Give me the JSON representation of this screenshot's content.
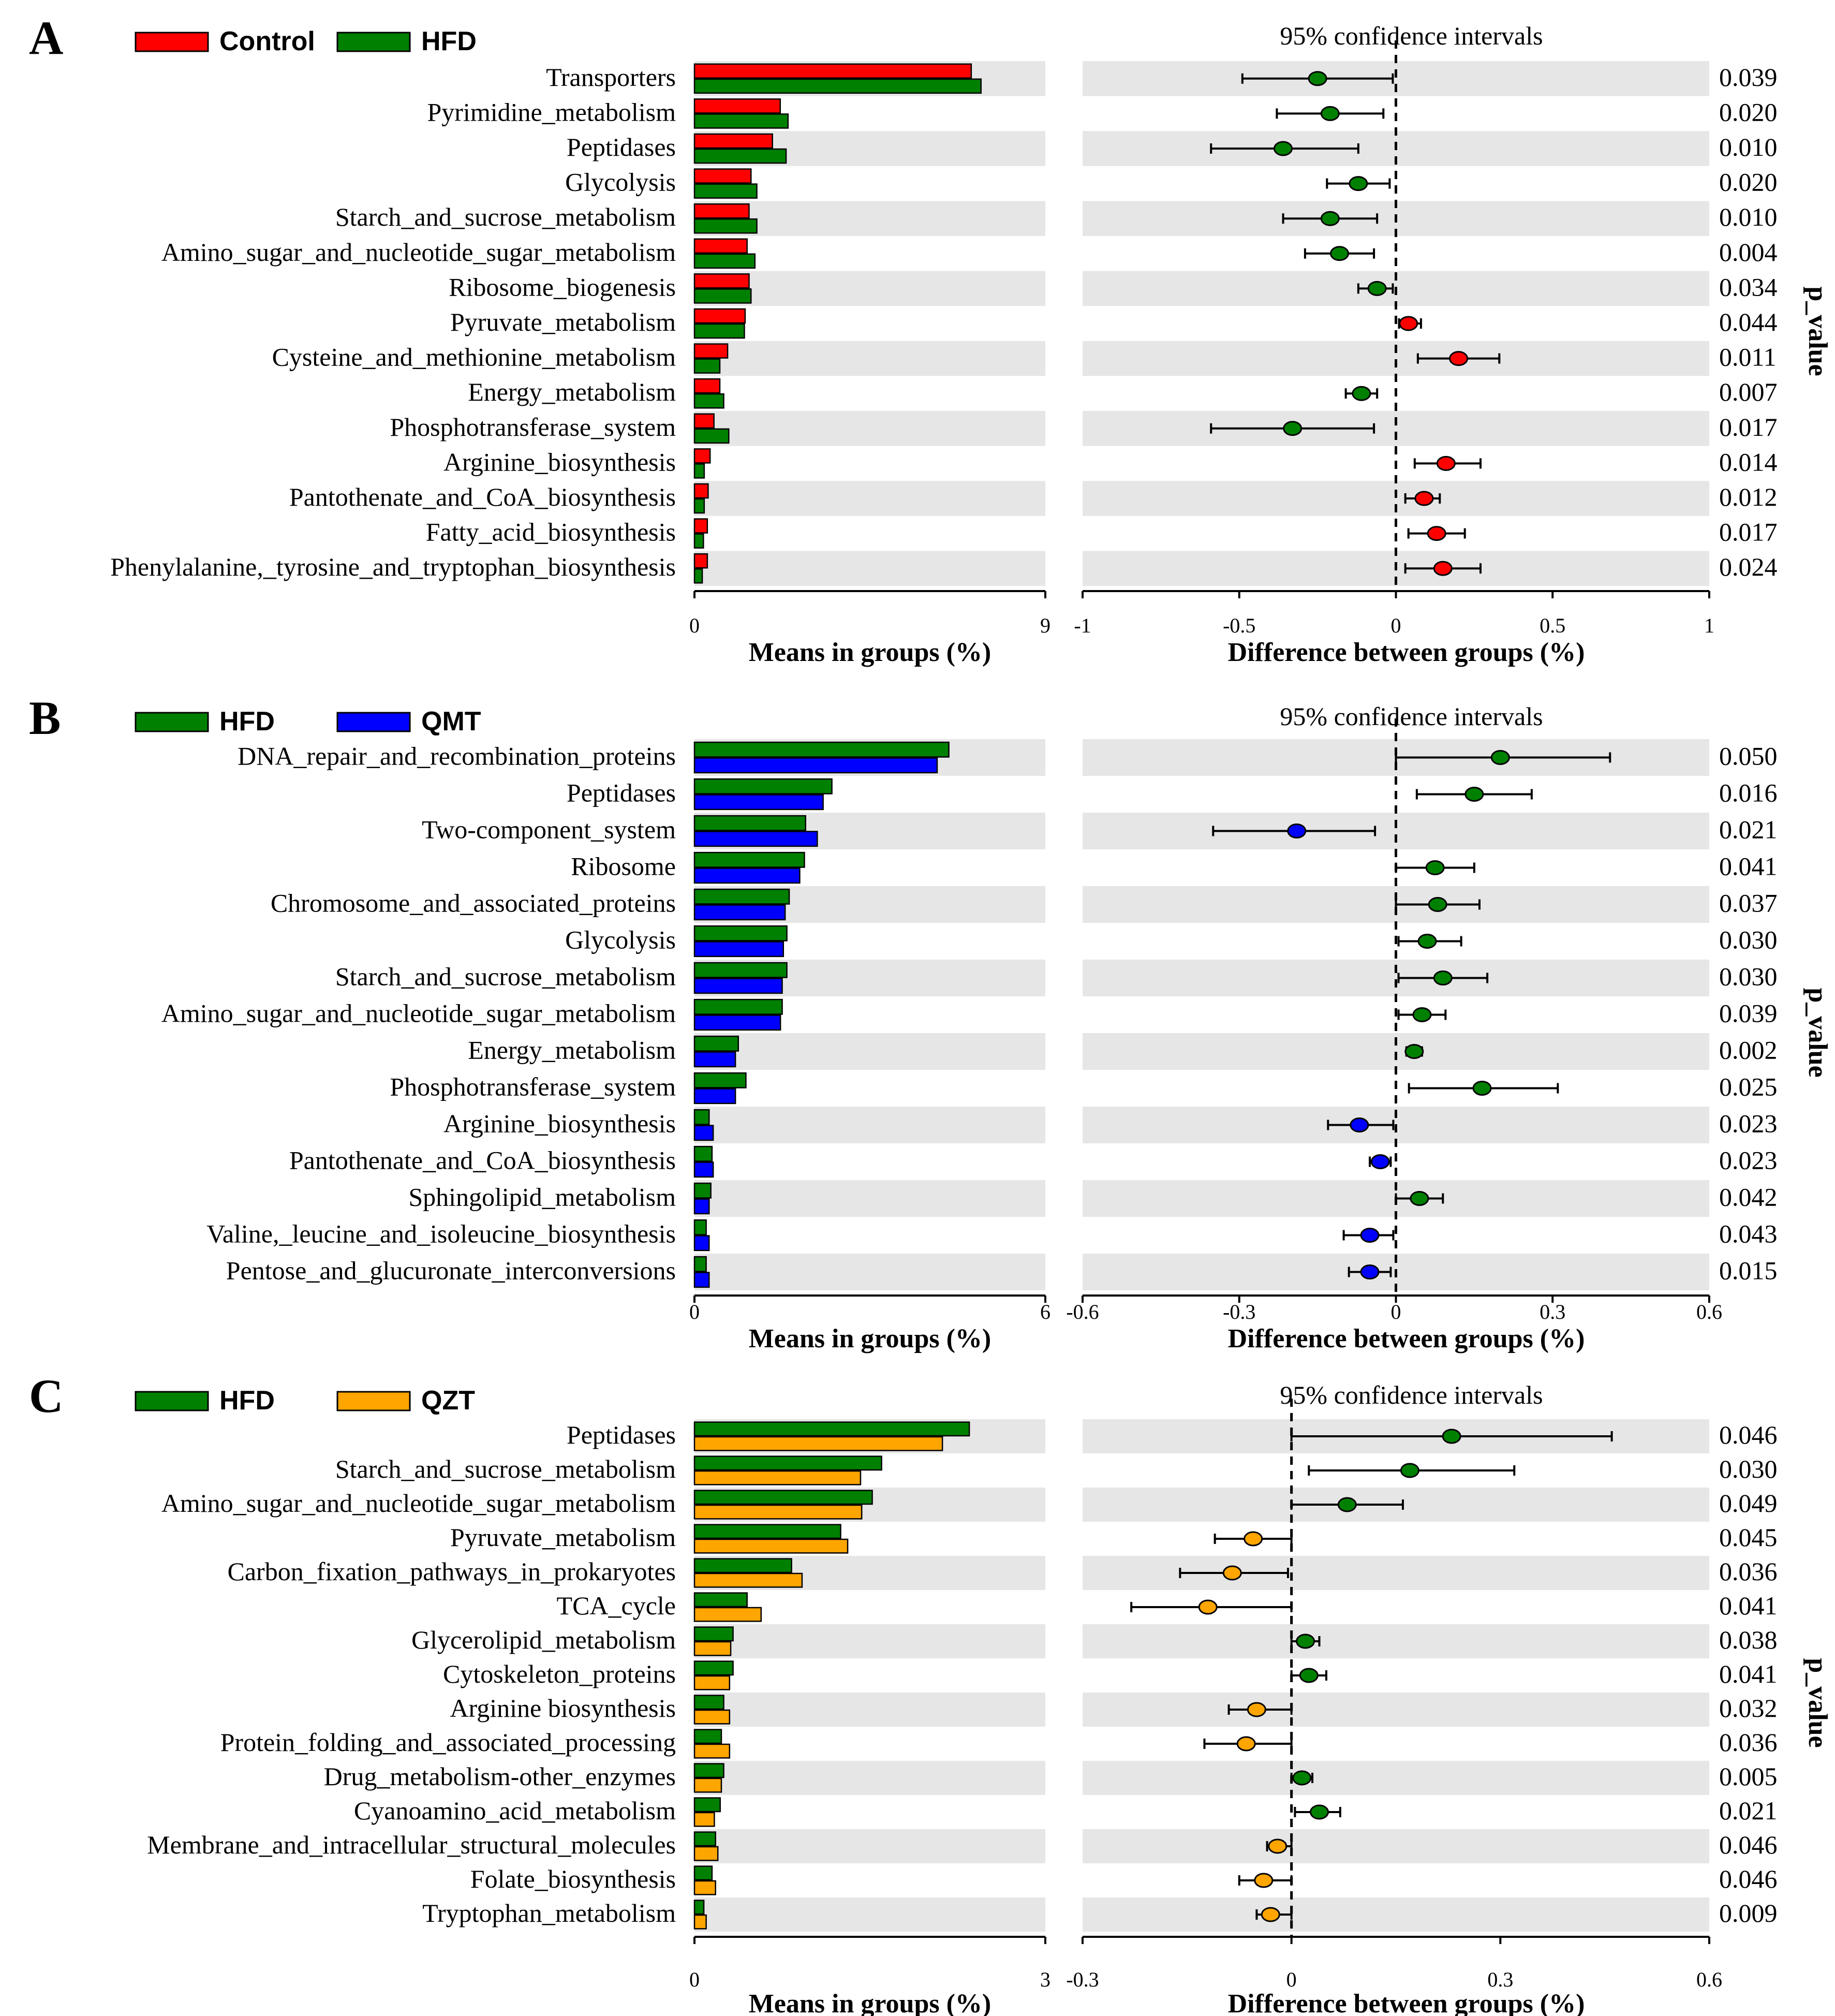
{
  "colors": {
    "Control": "#ff0000",
    "HFD": "#008000",
    "QMT": "#0000ff",
    "QZT": "#ffa500",
    "stripe": "#e6e6e6"
  },
  "chart_data": [
    {
      "type": "bar",
      "panel_label": "A",
      "legend": [
        "Control",
        "HFD"
      ],
      "ci_title": "95% confidence intervals",
      "xlabel_left": "Means in groups (%)",
      "xlabel_right": "Difference between groups (%)",
      "pvalue_title": "p_value",
      "left_xlim": [
        0,
        9
      ],
      "left_ticks": [
        "0",
        "9"
      ],
      "right_xlim": [
        -1,
        1
      ],
      "right_ticks": [
        {
          "v": -1,
          "t": "-1"
        },
        {
          "v": -0.5,
          "t": "-0.5"
        },
        {
          "v": 0,
          "t": "0"
        },
        {
          "v": 0.5,
          "t": "0.5"
        },
        {
          "v": 1,
          "t": "1"
        }
      ],
      "categories": [
        "Transporters",
        "Pyrimidine_metabolism",
        "Peptidases",
        "Glycolysis",
        "Starch_and_sucrose_metabolism",
        "Amino_sugar_and_nucleotide_sugar_metabolism",
        "Ribosome_biogenesis",
        "Pyruvate_metabolism",
        "Cysteine_and_methionine_metabolism",
        "Energy_metabolism",
        "Phosphotransferase_system",
        "Arginine_biosynthesis",
        "Pantothenate_and_CoA_biosynthesis",
        "Fatty_acid_biosynthesis",
        "Phenylalanine,_tyrosine_and_tryptophan_biosynthesis"
      ],
      "series": [
        {
          "name": "Control",
          "values": [
            7.1,
            2.2,
            2.0,
            1.45,
            1.4,
            1.35,
            1.4,
            1.3,
            0.85,
            0.65,
            0.5,
            0.4,
            0.35,
            0.33,
            0.33
          ]
        },
        {
          "name": "HFD",
          "values": [
            7.35,
            2.4,
            2.35,
            1.6,
            1.6,
            1.55,
            1.45,
            1.28,
            0.65,
            0.75,
            0.88,
            0.25,
            0.25,
            0.23,
            0.2
          ]
        }
      ],
      "diff": [
        -0.25,
        -0.21,
        -0.36,
        -0.12,
        -0.21,
        -0.18,
        -0.06,
        0.04,
        0.2,
        -0.11,
        -0.33,
        0.16,
        0.09,
        0.13,
        0.15
      ],
      "ci_low": [
        -0.49,
        -0.38,
        -0.59,
        -0.22,
        -0.36,
        -0.29,
        -0.12,
        0.01,
        0.07,
        -0.16,
        -0.59,
        0.06,
        0.03,
        0.04,
        0.03
      ],
      "ci_high": [
        -0.01,
        -0.04,
        -0.12,
        -0.02,
        -0.06,
        -0.07,
        -0.01,
        0.08,
        0.33,
        -0.06,
        -0.07,
        0.27,
        0.14,
        0.22,
        0.27
      ],
      "diff_group": [
        "HFD",
        "HFD",
        "HFD",
        "HFD",
        "HFD",
        "HFD",
        "HFD",
        "Control",
        "Control",
        "HFD",
        "HFD",
        "Control",
        "Control",
        "Control",
        "Control"
      ],
      "p_values": [
        "0.039",
        "0.020",
        "0.010",
        "0.020",
        "0.010",
        "0.004",
        "0.034",
        "0.044",
        "0.011",
        "0.007",
        "0.017",
        "0.014",
        "0.012",
        "0.017",
        "0.024"
      ]
    },
    {
      "type": "bar",
      "panel_label": "B",
      "legend": [
        "HFD",
        "QMT"
      ],
      "ci_title": "95% confidence intervals",
      "xlabel_left": "Means in groups (%)",
      "xlabel_right": "Difference between groups (%)",
      "pvalue_title": "p_value",
      "left_xlim": [
        0,
        6
      ],
      "left_ticks": [
        "0",
        "6"
      ],
      "right_xlim": [
        -0.6,
        0.6
      ],
      "right_ticks": [
        {
          "v": -0.6,
          "t": "-0.6"
        },
        {
          "v": -0.3,
          "t": "-0.3"
        },
        {
          "v": 0,
          "t": "0"
        },
        {
          "v": 0.3,
          "t": "0.3"
        },
        {
          "v": 0.6,
          "t": "0.6"
        }
      ],
      "categories": [
        "DNA_repair_and_recombination_proteins",
        "Peptidases",
        "Two-component_system",
        "Ribosome",
        "Chromosome_and_associated_proteins",
        "Glycolysis",
        "Starch_and_sucrose_metabolism",
        "Amino_sugar_and_nucleotide_sugar_metabolism",
        "Energy_metabolism",
        "Phosphotransferase_system",
        "Arginine_biosynthesis",
        "Pantothenate_and_CoA_biosynthesis",
        "Sphingolipid_metabolism",
        "Valine,_leucine_and_isoleucine_biosynthesis",
        "Pentose_and_glucuronate_interconversions"
      ],
      "series": [
        {
          "name": "HFD",
          "values": [
            4.35,
            2.35,
            1.9,
            1.88,
            1.62,
            1.58,
            1.58,
            1.5,
            0.75,
            0.88,
            0.25,
            0.3,
            0.28,
            0.2,
            0.2
          ]
        },
        {
          "name": "QMT",
          "values": [
            4.15,
            2.2,
            2.1,
            1.8,
            1.55,
            1.52,
            1.5,
            1.47,
            0.7,
            0.7,
            0.32,
            0.32,
            0.25,
            0.25,
            0.25
          ]
        }
      ],
      "diff": [
        0.2,
        0.15,
        -0.19,
        0.075,
        0.08,
        0.06,
        0.09,
        0.05,
        0.035,
        0.165,
        -0.07,
        -0.03,
        0.045,
        -0.05,
        -0.05
      ],
      "ci_low": [
        0.0,
        0.04,
        -0.35,
        0.0,
        0.0,
        0.005,
        0.005,
        0.005,
        0.02,
        0.025,
        -0.13,
        -0.05,
        0.0,
        -0.1,
        -0.09
      ],
      "ci_high": [
        0.41,
        0.26,
        -0.04,
        0.15,
        0.16,
        0.125,
        0.175,
        0.095,
        0.05,
        0.31,
        -0.005,
        -0.01,
        0.09,
        -0.005,
        -0.01
      ],
      "diff_group": [
        "HFD",
        "HFD",
        "QMT",
        "HFD",
        "HFD",
        "HFD",
        "HFD",
        "HFD",
        "HFD",
        "HFD",
        "QMT",
        "QMT",
        "HFD",
        "QMT",
        "QMT"
      ],
      "p_values": [
        "0.050",
        "0.016",
        "0.021",
        "0.041",
        "0.037",
        "0.030",
        "0.030",
        "0.039",
        "0.002",
        "0.025",
        "0.023",
        "0.023",
        "0.042",
        "0.043",
        "0.015"
      ]
    },
    {
      "type": "bar",
      "panel_label": "C",
      "legend": [
        "HFD",
        "QZT"
      ],
      "ci_title": "95% confidence intervals",
      "xlabel_left": "Means in groups (%)",
      "xlabel_right": "Difference between groups (%)",
      "pvalue_title": "p_value",
      "left_xlim": [
        0,
        3
      ],
      "left_ticks": [
        "0",
        "3"
      ],
      "right_xlim": [
        -0.3,
        0.6
      ],
      "right_ticks": [
        {
          "v": -0.3,
          "t": "-0.3"
        },
        {
          "v": 0,
          "t": "0"
        },
        {
          "v": 0.3,
          "t": "0.3"
        },
        {
          "v": 0.6,
          "t": "0.6"
        }
      ],
      "categories": [
        "Peptidases",
        "Starch_and_sucrose_metabolism",
        "Amino_sugar_and_nucleotide_sugar_metabolism",
        "Pyruvate_metabolism",
        "Carbon_fixation_pathways_in_prokaryotes",
        "TCA_cycle",
        "Glycerolipid_metabolism",
        "Cytoskeleton_proteins",
        "Arginine biosynthesis",
        "Protein_folding_and_associated_processing",
        "Drug_metabolism-other_enzymes",
        "Cyanoamino_acid_metabolism",
        "Membrane_and_intracellular_structural_molecules",
        "Folate_biosynthesis",
        "Tryptophan_metabolism"
      ],
      "series": [
        {
          "name": "HFD",
          "values": [
            2.35,
            1.6,
            1.52,
            1.25,
            0.83,
            0.45,
            0.33,
            0.33,
            0.25,
            0.23,
            0.25,
            0.22,
            0.18,
            0.15,
            0.08
          ]
        },
        {
          "name": "QZT",
          "values": [
            2.12,
            1.42,
            1.43,
            1.31,
            0.92,
            0.57,
            0.31,
            0.3,
            0.3,
            0.3,
            0.23,
            0.17,
            0.2,
            0.18,
            0.1
          ]
        }
      ],
      "diff": [
        0.23,
        0.17,
        0.08,
        -0.055,
        -0.085,
        -0.12,
        0.02,
        0.025,
        -0.05,
        -0.065,
        0.015,
        0.04,
        -0.02,
        -0.04,
        -0.03
      ],
      "ci_low": [
        0.0,
        0.025,
        0.0,
        -0.11,
        -0.16,
        -0.23,
        0.0,
        0.0,
        -0.09,
        -0.125,
        0.0,
        0.005,
        -0.035,
        -0.075,
        -0.05
      ],
      "ci_high": [
        0.46,
        0.32,
        0.16,
        0.0,
        -0.005,
        0.0,
        0.04,
        0.05,
        0.0,
        0.0,
        0.03,
        0.07,
        0.0,
        0.0,
        0.0
      ],
      "diff_group": [
        "HFD",
        "HFD",
        "HFD",
        "QZT",
        "QZT",
        "QZT",
        "HFD",
        "HFD",
        "QZT",
        "QZT",
        "HFD",
        "HFD",
        "QZT",
        "QZT",
        "QZT"
      ],
      "p_values": [
        "0.046",
        "0.030",
        "0.049",
        "0.045",
        "0.036",
        "0.041",
        "0.038",
        "0.041",
        "0.032",
        "0.036",
        "0.005",
        "0.021",
        "0.046",
        "0.046",
        "0.009"
      ]
    }
  ]
}
